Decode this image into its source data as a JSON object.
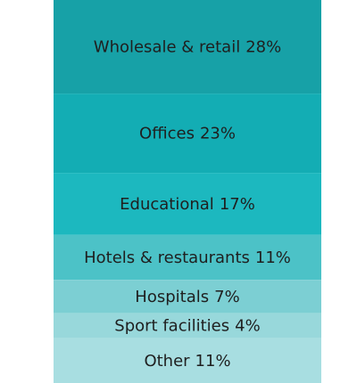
{
  "chart_data": {
    "type": "stacked-column",
    "categories": [
      "Wholesale & retail",
      "Offices",
      "Educational",
      "Hotels & restaurants",
      "Hospitals",
      "Sport facilities",
      "Other"
    ],
    "values": [
      28,
      23,
      17,
      11,
      7,
      4,
      11
    ],
    "value_labels": [
      "28%",
      "23%",
      "17%",
      "11%",
      "7%",
      "4%",
      "11%"
    ],
    "colors": [
      "#17a1a7",
      "#13adb4",
      "#1cb8bf",
      "#4cc2c7",
      "#7ccfd3",
      "#98d8db",
      "#a8dee1"
    ]
  }
}
